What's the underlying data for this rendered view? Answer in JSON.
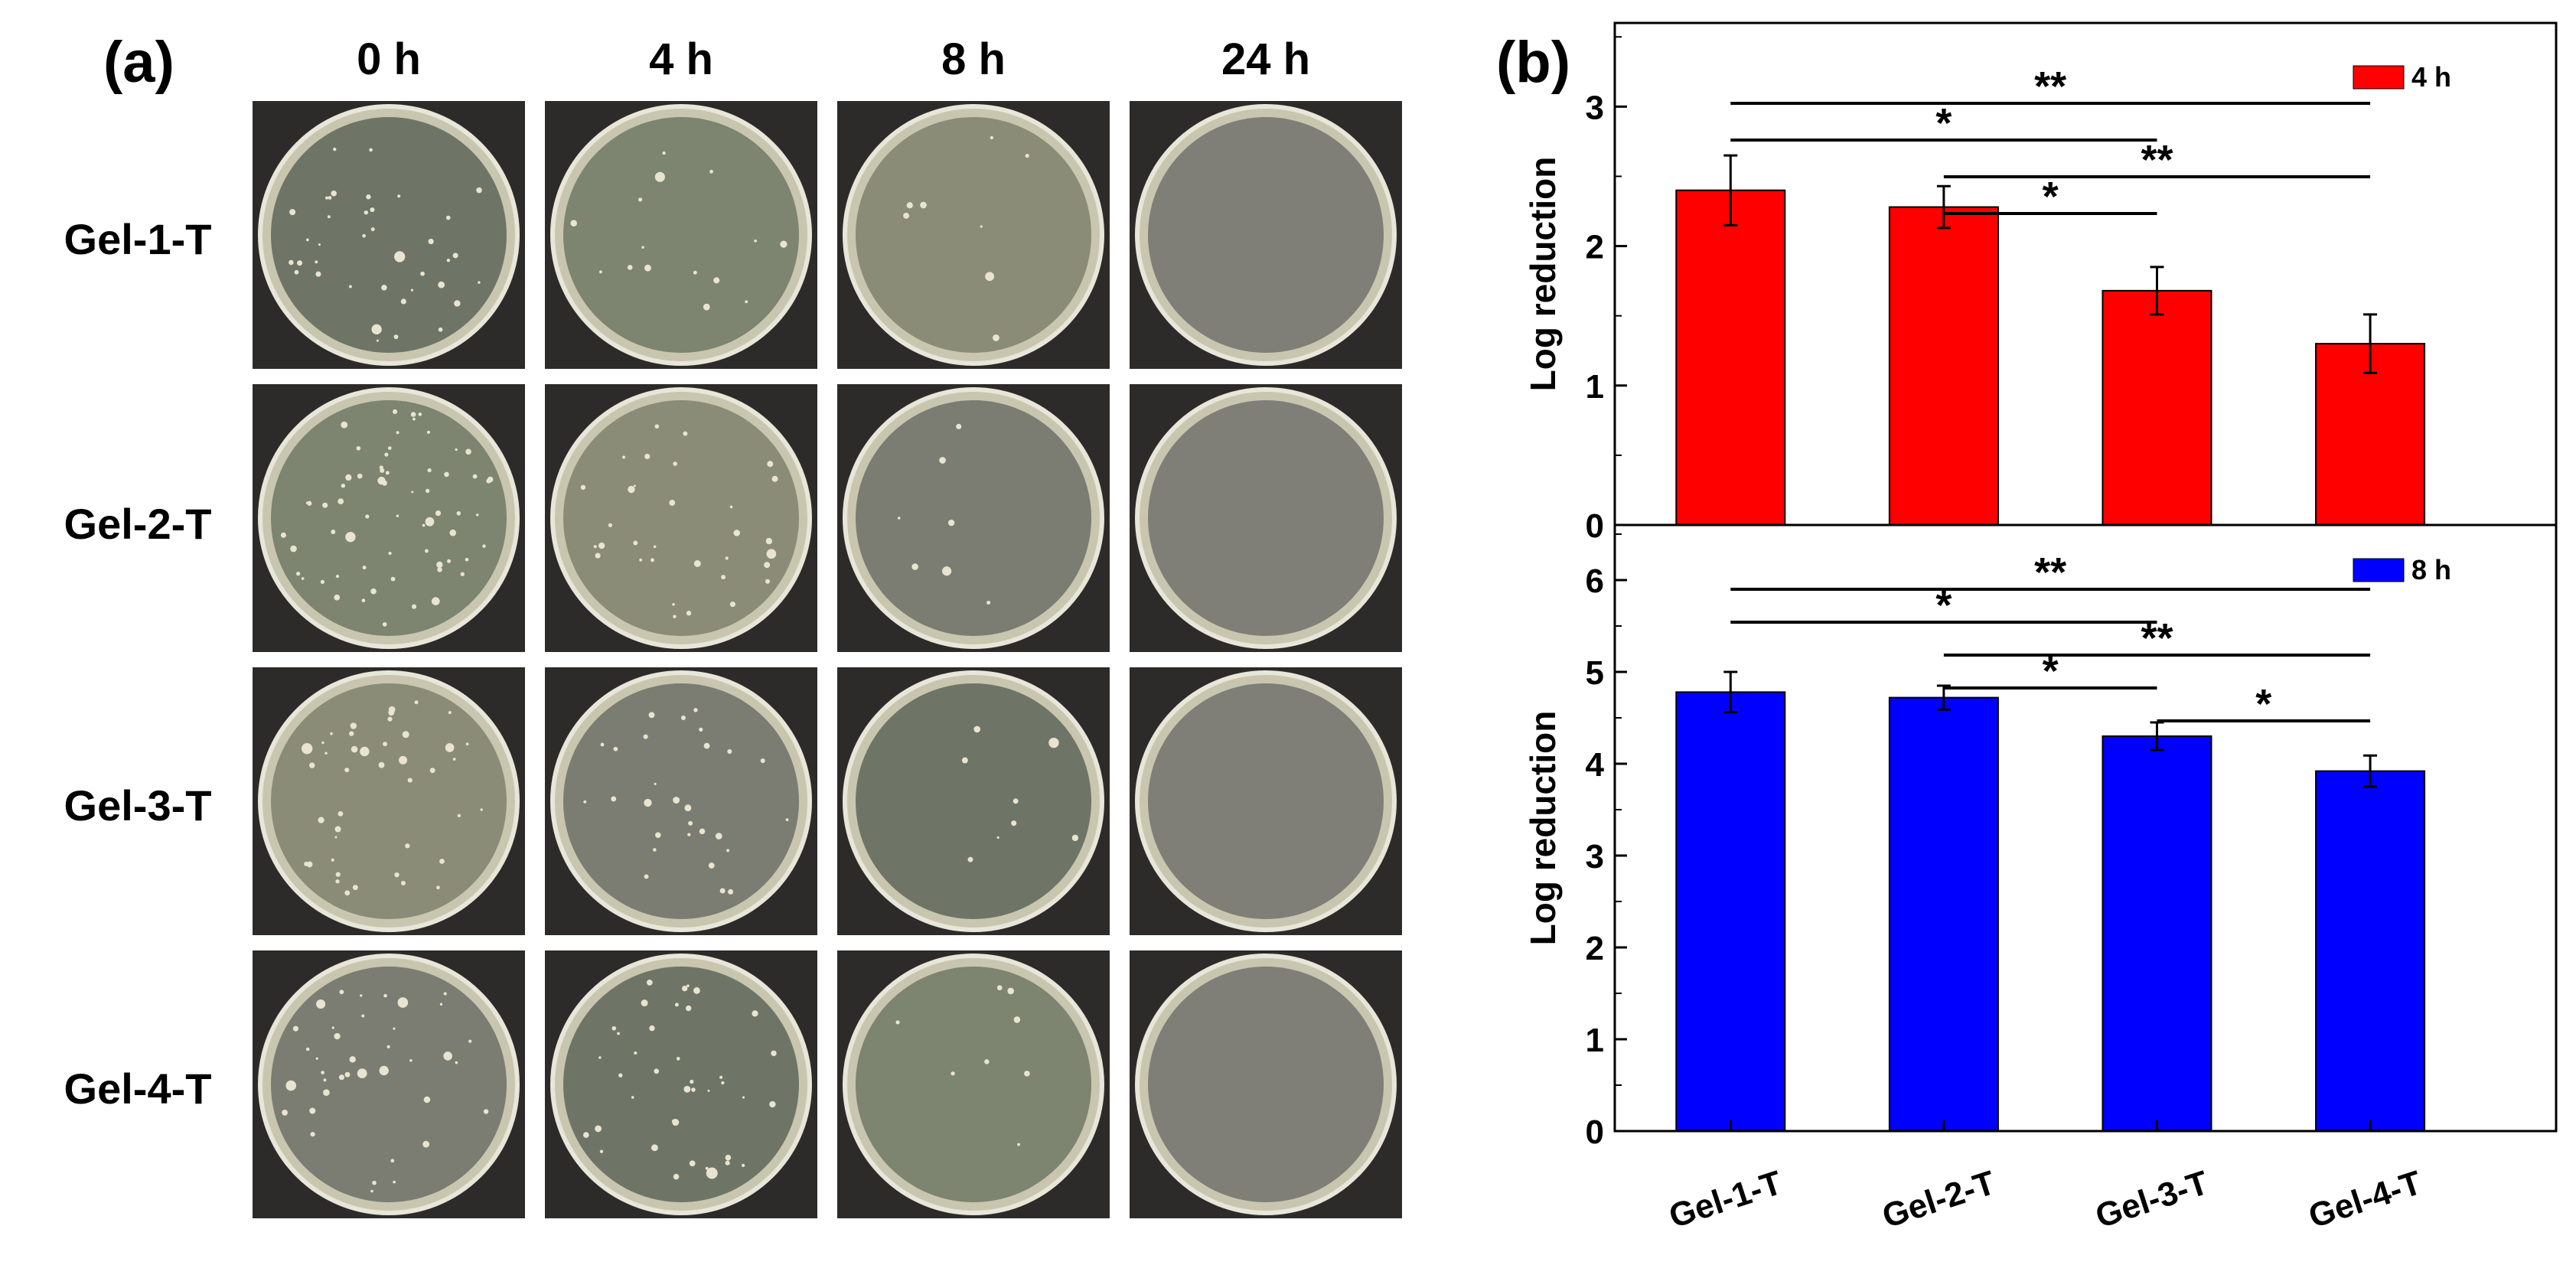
{
  "panel_a": {
    "label": "(a)",
    "time_labels": [
      "0 h",
      "4 h",
      "8 h",
      "24 h"
    ],
    "sample_labels": [
      "Gel-1-T",
      "Gel-2-T",
      "Gel-3-T",
      "Gel-4-T"
    ],
    "colony_density": [
      [
        0.55,
        0.22,
        0.12,
        0.0
      ],
      [
        0.9,
        0.45,
        0.1,
        0.0
      ],
      [
        0.6,
        0.4,
        0.12,
        0.0
      ],
      [
        0.55,
        0.55,
        0.12,
        0.0
      ]
    ]
  },
  "panel_b": {
    "label": "(b)",
    "chart_data": [
      {
        "type": "bar",
        "categories": [
          "Gel-1-T",
          "Gel-2-T",
          "Gel-3-T",
          "Gel-4-T"
        ],
        "series": [
          {
            "name": "4 h",
            "values": [
              2.4,
              2.28,
              1.68,
              1.3
            ],
            "errors": [
              0.25,
              0.15,
              0.17,
              0.21
            ],
            "color": "#ff0000"
          }
        ],
        "ylabel": "Log reduction",
        "ylim": [
          0,
          3.6
        ],
        "yticks": [
          0,
          1,
          2,
          3
        ],
        "legend": "top-right",
        "significance": [
          {
            "from": 0,
            "to": 3,
            "label": "**"
          },
          {
            "from": 0,
            "to": 2,
            "label": "*"
          },
          {
            "from": 1,
            "to": 3,
            "label": "**"
          },
          {
            "from": 1,
            "to": 2,
            "label": "*"
          }
        ]
      },
      {
        "type": "bar",
        "categories": [
          "Gel-1-T",
          "Gel-2-T",
          "Gel-3-T",
          "Gel-4-T"
        ],
        "series": [
          {
            "name": "8 h",
            "values": [
              4.78,
              4.72,
              4.3,
              3.92
            ],
            "errors": [
              0.22,
              0.13,
              0.15,
              0.17
            ],
            "color": "#0000ff"
          }
        ],
        "ylabel": "Log reduction",
        "ylim": [
          0,
          6.6
        ],
        "yticks": [
          0,
          1,
          2,
          3,
          4,
          5,
          6
        ],
        "legend": "top-right",
        "significance": [
          {
            "from": 0,
            "to": 3,
            "label": "**"
          },
          {
            "from": 0,
            "to": 2,
            "label": "*"
          },
          {
            "from": 1,
            "to": 3,
            "label": "**"
          },
          {
            "from": 1,
            "to": 2,
            "label": "*"
          },
          {
            "from": 2,
            "to": 3,
            "label": "*"
          }
        ]
      }
    ]
  }
}
